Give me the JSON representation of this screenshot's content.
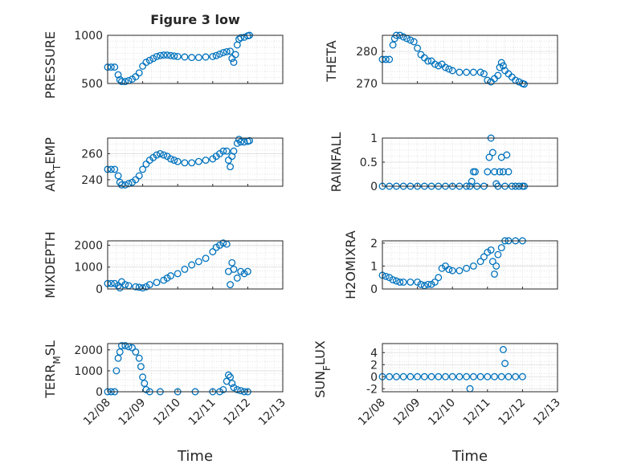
{
  "figure_title": "Figure 3 low",
  "x_axis": {
    "label": "Time",
    "ticks": [
      "12/08",
      "12/09",
      "12/10",
      "12/11",
      "12/12",
      "12/13"
    ]
  },
  "marker_color": "#0072BD",
  "grid": true,
  "chart_data": [
    {
      "type": "scatter",
      "ylabel": "PRESSURE",
      "ylim": [
        500,
        1000
      ],
      "yticks": [
        "500",
        "1000"
      ],
      "points": [
        [
          0.0,
          670
        ],
        [
          0.1,
          670
        ],
        [
          0.2,
          670
        ],
        [
          0.3,
          590
        ],
        [
          0.35,
          540
        ],
        [
          0.4,
          520
        ],
        [
          0.5,
          520
        ],
        [
          0.6,
          530
        ],
        [
          0.7,
          545
        ],
        [
          0.8,
          570
        ],
        [
          0.9,
          610
        ],
        [
          1.0,
          680
        ],
        [
          1.1,
          720
        ],
        [
          1.2,
          740
        ],
        [
          1.3,
          760
        ],
        [
          1.4,
          780
        ],
        [
          1.5,
          790
        ],
        [
          1.6,
          795
        ],
        [
          1.7,
          795
        ],
        [
          1.8,
          790
        ],
        [
          1.9,
          785
        ],
        [
          2.0,
          780
        ],
        [
          2.2,
          775
        ],
        [
          2.4,
          770
        ],
        [
          2.6,
          770
        ],
        [
          2.8,
          775
        ],
        [
          3.0,
          780
        ],
        [
          3.1,
          790
        ],
        [
          3.2,
          805
        ],
        [
          3.3,
          820
        ],
        [
          3.4,
          830
        ],
        [
          3.5,
          835
        ],
        [
          3.55,
          760
        ],
        [
          3.6,
          720
        ],
        [
          3.65,
          800
        ],
        [
          3.7,
          900
        ],
        [
          3.75,
          960
        ],
        [
          3.8,
          975
        ],
        [
          3.9,
          980
        ],
        [
          4.0,
          995
        ],
        [
          4.05,
          1000
        ]
      ]
    },
    {
      "type": "scatter",
      "ylabel": "THETA",
      "ylim": [
        270,
        285
      ],
      "yticks": [
        "270",
        "280"
      ],
      "points": [
        [
          0.0,
          277.5
        ],
        [
          0.1,
          277.5
        ],
        [
          0.2,
          277.5
        ],
        [
          0.3,
          282
        ],
        [
          0.35,
          284
        ],
        [
          0.4,
          285
        ],
        [
          0.5,
          285
        ],
        [
          0.6,
          284.5
        ],
        [
          0.7,
          284
        ],
        [
          0.8,
          283.5
        ],
        [
          0.9,
          283
        ],
        [
          1.0,
          281
        ],
        [
          1.1,
          279
        ],
        [
          1.2,
          278
        ],
        [
          1.3,
          277
        ],
        [
          1.4,
          277
        ],
        [
          1.5,
          276
        ],
        [
          1.6,
          275.5
        ],
        [
          1.7,
          276
        ],
        [
          1.8,
          275
        ],
        [
          1.9,
          274.5
        ],
        [
          2.0,
          274
        ],
        [
          2.2,
          273.5
        ],
        [
          2.4,
          273.5
        ],
        [
          2.6,
          273.5
        ],
        [
          2.8,
          273.5
        ],
        [
          2.9,
          273
        ],
        [
          3.0,
          271
        ],
        [
          3.1,
          270.5
        ],
        [
          3.2,
          271.5
        ],
        [
          3.3,
          272.5
        ],
        [
          3.35,
          275
        ],
        [
          3.4,
          276.5
        ],
        [
          3.45,
          275.5
        ],
        [
          3.5,
          274
        ],
        [
          3.6,
          273
        ],
        [
          3.7,
          272
        ],
        [
          3.8,
          271
        ],
        [
          3.9,
          270.5
        ],
        [
          4.0,
          270
        ],
        [
          4.05,
          269.8
        ]
      ]
    },
    {
      "type": "scatter",
      "ylabel": "AIR_TEMP",
      "ylim": [
        235,
        272
      ],
      "yticks": [
        "240",
        "260"
      ],
      "points": [
        [
          0.0,
          248
        ],
        [
          0.1,
          248
        ],
        [
          0.2,
          248
        ],
        [
          0.3,
          243
        ],
        [
          0.35,
          238
        ],
        [
          0.4,
          236
        ],
        [
          0.5,
          236
        ],
        [
          0.6,
          237
        ],
        [
          0.7,
          238
        ],
        [
          0.8,
          240
        ],
        [
          0.9,
          243
        ],
        [
          1.0,
          248
        ],
        [
          1.1,
          252
        ],
        [
          1.2,
          255
        ],
        [
          1.3,
          257
        ],
        [
          1.4,
          259
        ],
        [
          1.5,
          260
        ],
        [
          1.6,
          259
        ],
        [
          1.7,
          258
        ],
        [
          1.8,
          256
        ],
        [
          1.9,
          255
        ],
        [
          2.0,
          254
        ],
        [
          2.2,
          253
        ],
        [
          2.4,
          253
        ],
        [
          2.6,
          254
        ],
        [
          2.8,
          255
        ],
        [
          3.0,
          256
        ],
        [
          3.1,
          258
        ],
        [
          3.2,
          260
        ],
        [
          3.3,
          262
        ],
        [
          3.4,
          262
        ],
        [
          3.45,
          255
        ],
        [
          3.5,
          250
        ],
        [
          3.55,
          258
        ],
        [
          3.6,
          262
        ],
        [
          3.7,
          268
        ],
        [
          3.75,
          271
        ],
        [
          3.8,
          269
        ],
        [
          3.9,
          269
        ],
        [
          4.0,
          269.5
        ],
        [
          4.05,
          270
        ]
      ]
    },
    {
      "type": "scatter",
      "ylabel": "RAINFALL",
      "ylim": [
        0,
        1
      ],
      "yticks": [
        "0",
        "0.5",
        "1"
      ],
      "points": [
        [
          0.0,
          0
        ],
        [
          0.2,
          0
        ],
        [
          0.4,
          0
        ],
        [
          0.6,
          0
        ],
        [
          0.8,
          0
        ],
        [
          1.0,
          0
        ],
        [
          1.2,
          0
        ],
        [
          1.4,
          0
        ],
        [
          1.6,
          0
        ],
        [
          1.8,
          0
        ],
        [
          2.0,
          0
        ],
        [
          2.2,
          0
        ],
        [
          2.4,
          0
        ],
        [
          2.5,
          0
        ],
        [
          2.55,
          0.1
        ],
        [
          2.6,
          0.3
        ],
        [
          2.65,
          0.3
        ],
        [
          2.7,
          0
        ],
        [
          2.9,
          0
        ],
        [
          3.0,
          0.3
        ],
        [
          3.05,
          0.6
        ],
        [
          3.1,
          1.0
        ],
        [
          3.15,
          0.7
        ],
        [
          3.2,
          0.3
        ],
        [
          3.25,
          0.05
        ],
        [
          3.3,
          0
        ],
        [
          3.35,
          0.3
        ],
        [
          3.4,
          0.6
        ],
        [
          3.45,
          0.3
        ],
        [
          3.5,
          0
        ],
        [
          3.55,
          0.65
        ],
        [
          3.6,
          0.3
        ],
        [
          3.7,
          0
        ],
        [
          3.8,
          0
        ],
        [
          3.9,
          0
        ],
        [
          4.0,
          0
        ],
        [
          4.05,
          0
        ]
      ]
    },
    {
      "type": "scatter",
      "ylabel": "MIXDEPTH",
      "ylim": [
        0,
        2200
      ],
      "yticks": [
        "0",
        "1000",
        "2000"
      ],
      "points": [
        [
          0.0,
          250
        ],
        [
          0.1,
          250
        ],
        [
          0.2,
          250
        ],
        [
          0.3,
          150
        ],
        [
          0.35,
          50
        ],
        [
          0.4,
          330
        ],
        [
          0.5,
          200
        ],
        [
          0.6,
          150
        ],
        [
          0.8,
          100
        ],
        [
          0.9,
          80
        ],
        [
          1.0,
          50
        ],
        [
          1.1,
          100
        ],
        [
          1.2,
          200
        ],
        [
          1.4,
          300
        ],
        [
          1.6,
          400
        ],
        [
          1.7,
          500
        ],
        [
          1.8,
          600
        ],
        [
          2.0,
          700
        ],
        [
          2.2,
          900
        ],
        [
          2.4,
          1100
        ],
        [
          2.6,
          1250
        ],
        [
          2.8,
          1400
        ],
        [
          3.0,
          1700
        ],
        [
          3.1,
          1900
        ],
        [
          3.2,
          2000
        ],
        [
          3.3,
          2100
        ],
        [
          3.4,
          2050
        ],
        [
          3.45,
          800
        ],
        [
          3.5,
          200
        ],
        [
          3.55,
          1200
        ],
        [
          3.6,
          900
        ],
        [
          3.7,
          500
        ],
        [
          3.8,
          800
        ],
        [
          3.9,
          700
        ],
        [
          4.0,
          800
        ]
      ]
    },
    {
      "type": "scatter",
      "ylabel": "H2OMIXRA",
      "ylim": [
        0,
        2.1
      ],
      "yticks": [
        "0",
        "1",
        "2"
      ],
      "points": [
        [
          0.0,
          0.6
        ],
        [
          0.1,
          0.55
        ],
        [
          0.2,
          0.5
        ],
        [
          0.3,
          0.4
        ],
        [
          0.4,
          0.35
        ],
        [
          0.5,
          0.3
        ],
        [
          0.6,
          0.3
        ],
        [
          0.8,
          0.3
        ],
        [
          1.0,
          0.3
        ],
        [
          1.1,
          0.2
        ],
        [
          1.2,
          0.15
        ],
        [
          1.3,
          0.2
        ],
        [
          1.4,
          0.2
        ],
        [
          1.5,
          0.3
        ],
        [
          1.6,
          0.5
        ],
        [
          1.7,
          0.9
        ],
        [
          1.8,
          1.0
        ],
        [
          1.9,
          0.85
        ],
        [
          2.0,
          0.8
        ],
        [
          2.2,
          0.8
        ],
        [
          2.4,
          0.9
        ],
        [
          2.6,
          1.0
        ],
        [
          2.8,
          1.2
        ],
        [
          2.9,
          1.4
        ],
        [
          3.0,
          1.6
        ],
        [
          3.1,
          1.7
        ],
        [
          3.15,
          1.2
        ],
        [
          3.2,
          0.65
        ],
        [
          3.25,
          1.0
        ],
        [
          3.3,
          1.5
        ],
        [
          3.4,
          1.8
        ],
        [
          3.5,
          2.1
        ],
        [
          3.6,
          2.1
        ],
        [
          3.8,
          2.1
        ],
        [
          4.0,
          2.1
        ]
      ]
    },
    {
      "type": "scatter",
      "ylabel": "TERR_MSL",
      "ylim": [
        0,
        2300
      ],
      "yticks": [
        "0",
        "1000",
        "2000"
      ],
      "points": [
        [
          0.0,
          0
        ],
        [
          0.1,
          0
        ],
        [
          0.2,
          0
        ],
        [
          0.25,
          1000
        ],
        [
          0.3,
          1600
        ],
        [
          0.35,
          1900
        ],
        [
          0.4,
          2200
        ],
        [
          0.5,
          2200
        ],
        [
          0.6,
          2150
        ],
        [
          0.7,
          2100
        ],
        [
          0.8,
          1900
        ],
        [
          0.9,
          1600
        ],
        [
          0.95,
          1200
        ],
        [
          1.0,
          700
        ],
        [
          1.05,
          400
        ],
        [
          1.1,
          100
        ],
        [
          1.2,
          0
        ],
        [
          1.5,
          0
        ],
        [
          2.0,
          0
        ],
        [
          2.5,
          0
        ],
        [
          3.0,
          0
        ],
        [
          3.2,
          0
        ],
        [
          3.3,
          100
        ],
        [
          3.4,
          500
        ],
        [
          3.45,
          800
        ],
        [
          3.5,
          700
        ],
        [
          3.55,
          400
        ],
        [
          3.6,
          200
        ],
        [
          3.7,
          100
        ],
        [
          3.8,
          50
        ],
        [
          3.9,
          0
        ],
        [
          4.0,
          0
        ]
      ]
    },
    {
      "type": "scatter",
      "ylabel": "SUN_FLUX",
      "ylim": [
        -2.5,
        5.5
      ],
      "yticks": [
        "-2",
        "0",
        "2",
        "4"
      ],
      "points": [
        [
          0.0,
          0
        ],
        [
          0.2,
          0
        ],
        [
          0.4,
          0
        ],
        [
          0.6,
          0
        ],
        [
          0.8,
          0
        ],
        [
          1.0,
          0
        ],
        [
          1.2,
          0
        ],
        [
          1.4,
          0
        ],
        [
          1.6,
          0
        ],
        [
          1.8,
          0
        ],
        [
          2.0,
          0
        ],
        [
          2.2,
          0
        ],
        [
          2.4,
          0
        ],
        [
          2.5,
          -2
        ],
        [
          2.6,
          0
        ],
        [
          2.8,
          0
        ],
        [
          3.0,
          0
        ],
        [
          3.2,
          0
        ],
        [
          3.4,
          0
        ],
        [
          3.45,
          4.5
        ],
        [
          3.5,
          2.2
        ],
        [
          3.6,
          0
        ],
        [
          3.8,
          0
        ],
        [
          4.0,
          0
        ]
      ]
    }
  ]
}
